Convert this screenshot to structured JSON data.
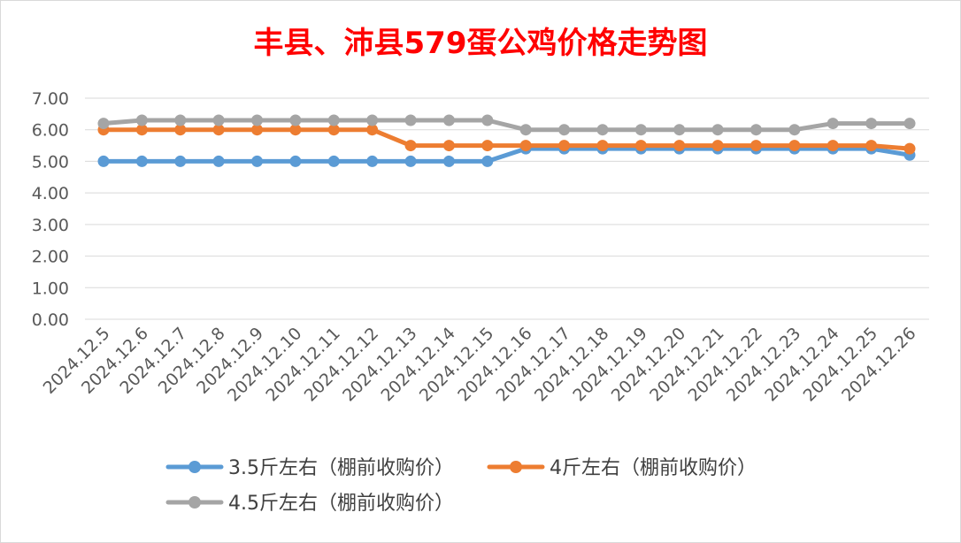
{
  "chart_data": {
    "type": "line",
    "title": "丰县、沛县579蛋公鸡价格走势图",
    "title_color": "#ff0000",
    "ylim": [
      0,
      7
    ],
    "y_ticks": [
      "0.00",
      "1.00",
      "2.00",
      "3.00",
      "4.00",
      "5.00",
      "6.00",
      "7.00"
    ],
    "categories": [
      "2024.12.5",
      "2024.12.6",
      "2024.12.7",
      "2024.12.8",
      "2024.12.9",
      "2024.12.10",
      "2024.12.11",
      "2024.12.12",
      "2024.12.13",
      "2024.12.14",
      "2024.12.15",
      "2024.12.16",
      "2024.12.17",
      "2024.12.18",
      "2024.12.19",
      "2024.12.20",
      "2024.12.21",
      "2024.12.22",
      "2024.12.23",
      "2024.12.24",
      "2024.12.25",
      "2024.12.26"
    ],
    "grid": true,
    "legend_position": "bottom",
    "series": [
      {
        "name": "3.5斤左右（棚前收购价）",
        "color": "#5b9bd5",
        "values": [
          5.0,
          5.0,
          5.0,
          5.0,
          5.0,
          5.0,
          5.0,
          5.0,
          5.0,
          5.0,
          5.0,
          5.4,
          5.4,
          5.4,
          5.4,
          5.4,
          5.4,
          5.4,
          5.4,
          5.4,
          5.4,
          5.2
        ]
      },
      {
        "name": "4斤左右（棚前收购价）",
        "color": "#ed7d31",
        "values": [
          6.0,
          6.0,
          6.0,
          6.0,
          6.0,
          6.0,
          6.0,
          6.0,
          5.5,
          5.5,
          5.5,
          5.5,
          5.5,
          5.5,
          5.5,
          5.5,
          5.5,
          5.5,
          5.5,
          5.5,
          5.5,
          5.4
        ]
      },
      {
        "name": "4.5斤左右（棚前收购价）",
        "color": "#a5a5a5",
        "values": [
          6.2,
          6.3,
          6.3,
          6.3,
          6.3,
          6.3,
          6.3,
          6.3,
          6.3,
          6.3,
          6.3,
          6.0,
          6.0,
          6.0,
          6.0,
          6.0,
          6.0,
          6.0,
          6.0,
          6.2,
          6.2,
          6.2
        ]
      }
    ]
  }
}
